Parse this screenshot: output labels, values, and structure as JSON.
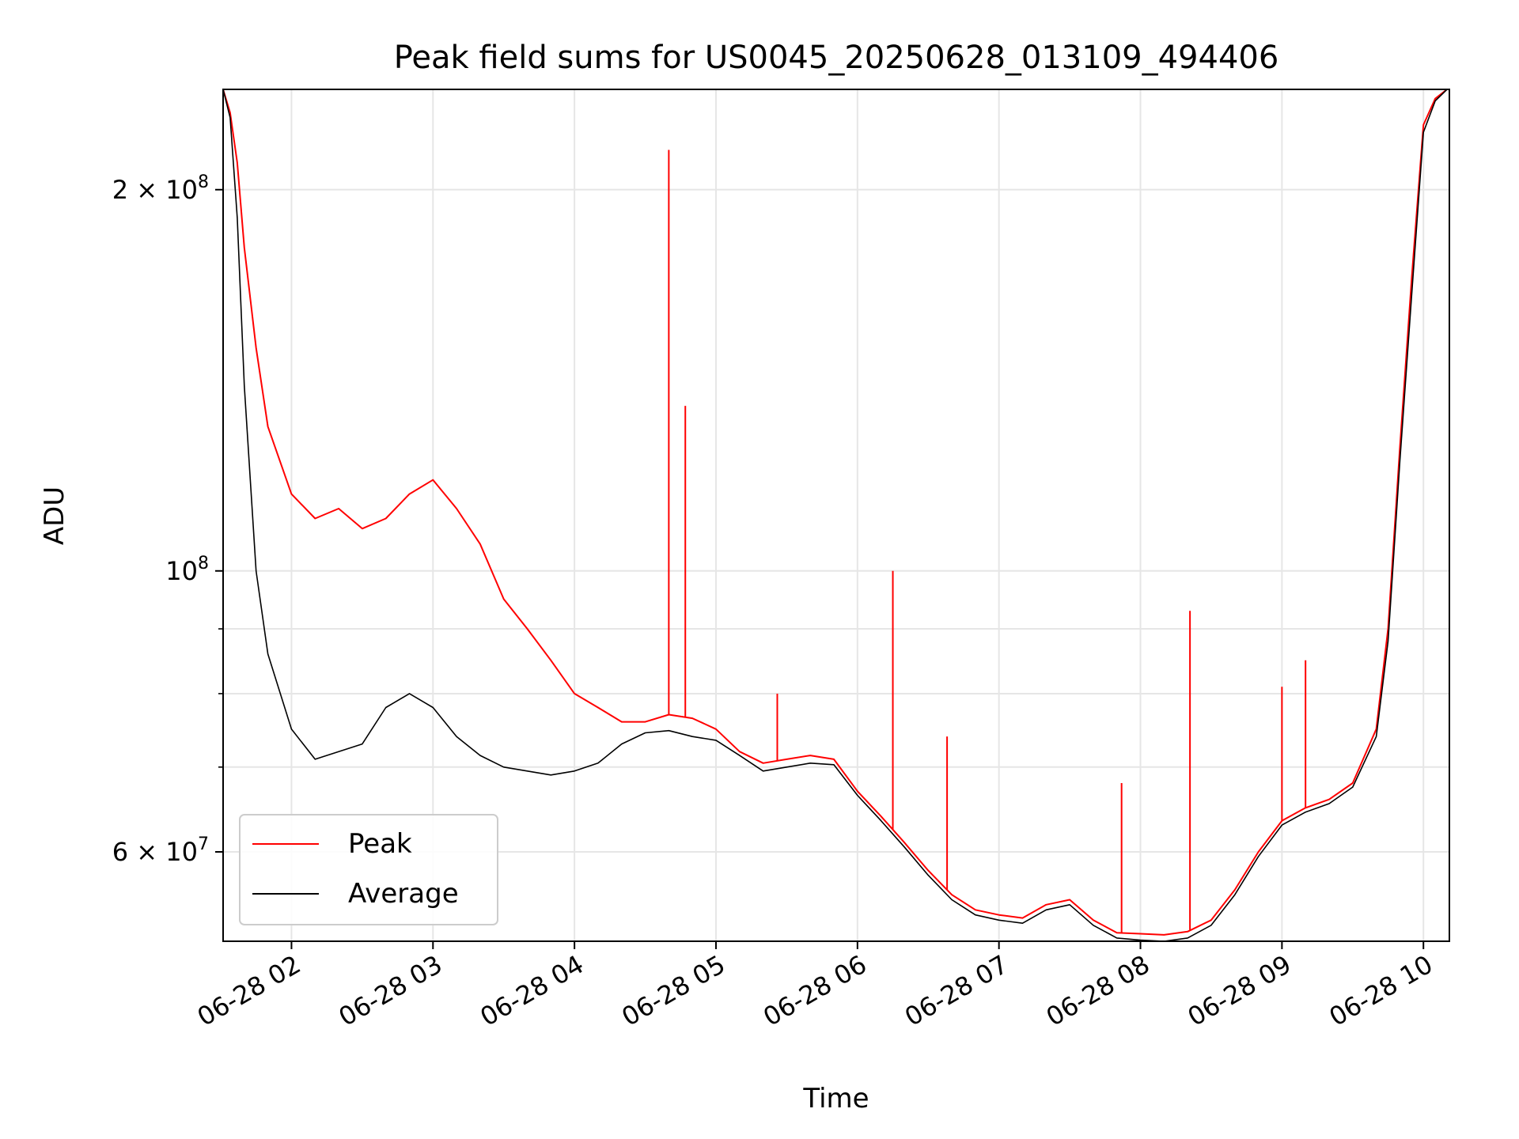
{
  "chart_data": {
    "type": "line",
    "title": "Peak field sums for US0045_20250628_013109_494406",
    "xlabel": "Time",
    "ylabel": "ADU",
    "yscale": "log",
    "grid": true,
    "legend_position": "lower-left",
    "xlim": [
      "2025-06-28 01:31",
      "2025-06-28 10:11"
    ],
    "ylim": [
      51000000,
      240000000
    ],
    "x_ticks": [
      {
        "value": "2025-06-28 02:00",
        "label": "06-28 02"
      },
      {
        "value": "2025-06-28 03:00",
        "label": "06-28 03"
      },
      {
        "value": "2025-06-28 04:00",
        "label": "06-28 04"
      },
      {
        "value": "2025-06-28 05:00",
        "label": "06-28 05"
      },
      {
        "value": "2025-06-28 06:00",
        "label": "06-28 06"
      },
      {
        "value": "2025-06-28 07:00",
        "label": "06-28 07"
      },
      {
        "value": "2025-06-28 08:00",
        "label": "06-28 08"
      },
      {
        "value": "2025-06-28 09:00",
        "label": "06-28 09"
      },
      {
        "value": "2025-06-28 10:00",
        "label": "06-28 10"
      }
    ],
    "y_major_ticks": [
      {
        "value": 200000000,
        "mantissa": "2",
        "exp": "8"
      },
      {
        "value": 100000000,
        "mantissa": "",
        "exp": "8"
      },
      {
        "value": 60000000,
        "mantissa": "6",
        "exp": "7"
      }
    ],
    "y_minor_ticks": [
      70000000,
      80000000,
      90000000,
      300000000
    ],
    "series": [
      {
        "name": "Peak",
        "color": "#ff0000",
        "x": [
          "2025-06-28 01:31",
          "2025-06-28 01:34",
          "2025-06-28 01:37",
          "2025-06-28 01:40",
          "2025-06-28 01:45",
          "2025-06-28 01:50",
          "2025-06-28 02:00",
          "2025-06-28 02:10",
          "2025-06-28 02:20",
          "2025-06-28 02:30",
          "2025-06-28 02:40",
          "2025-06-28 02:50",
          "2025-06-28 03:00",
          "2025-06-28 03:10",
          "2025-06-28 03:20",
          "2025-06-28 03:30",
          "2025-06-28 03:40",
          "2025-06-28 03:50",
          "2025-06-28 04:00",
          "2025-06-28 04:10",
          "2025-06-28 04:20",
          "2025-06-28 04:30",
          "2025-06-28 04:40",
          "2025-06-28 04:50",
          "2025-06-28 05:00",
          "2025-06-28 05:10",
          "2025-06-28 05:20",
          "2025-06-28 05:30",
          "2025-06-28 05:40",
          "2025-06-28 05:50",
          "2025-06-28 06:00",
          "2025-06-28 06:10",
          "2025-06-28 06:20",
          "2025-06-28 06:30",
          "2025-06-28 06:40",
          "2025-06-28 06:50",
          "2025-06-28 07:00",
          "2025-06-28 07:10",
          "2025-06-28 07:20",
          "2025-06-28 07:30",
          "2025-06-28 07:40",
          "2025-06-28 07:50",
          "2025-06-28 08:00",
          "2025-06-28 08:10",
          "2025-06-28 08:20",
          "2025-06-28 08:30",
          "2025-06-28 08:40",
          "2025-06-28 08:50",
          "2025-06-28 09:00",
          "2025-06-28 09:10",
          "2025-06-28 09:20",
          "2025-06-28 09:30",
          "2025-06-28 09:40",
          "2025-06-28 09:45",
          "2025-06-28 09:50",
          "2025-06-28 09:55",
          "2025-06-28 10:00",
          "2025-06-28 10:05",
          "2025-06-28 10:10"
        ],
        "y": [
          240000000,
          230000000,
          210000000,
          180000000,
          150000000,
          130000000,
          115000000,
          110000000,
          112000000,
          108000000,
          110000000,
          115000000,
          118000000,
          112000000,
          105000000,
          95000000,
          90000000,
          85000000,
          80000000,
          78000000,
          76000000,
          76000000,
          77000000,
          76500000,
          75000000,
          72000000,
          70500000,
          71000000,
          71500000,
          71000000,
          67000000,
          64000000,
          61000000,
          58000000,
          55500000,
          54000000,
          53500000,
          53200000,
          54500000,
          55000000,
          53000000,
          51800000,
          51700000,
          51600000,
          51900000,
          53000000,
          56000000,
          60000000,
          63500000,
          65000000,
          66000000,
          68000000,
          75000000,
          90000000,
          125000000,
          170000000,
          225000000,
          236000000,
          240000000
        ]
      },
      {
        "name": "Average",
        "color": "#000000",
        "x": [
          "2025-06-28 01:31",
          "2025-06-28 01:34",
          "2025-06-28 01:37",
          "2025-06-28 01:40",
          "2025-06-28 01:45",
          "2025-06-28 01:50",
          "2025-06-28 02:00",
          "2025-06-28 02:10",
          "2025-06-28 02:20",
          "2025-06-28 02:30",
          "2025-06-28 02:40",
          "2025-06-28 02:50",
          "2025-06-28 03:00",
          "2025-06-28 03:10",
          "2025-06-28 03:20",
          "2025-06-28 03:30",
          "2025-06-28 03:40",
          "2025-06-28 03:50",
          "2025-06-28 04:00",
          "2025-06-28 04:10",
          "2025-06-28 04:20",
          "2025-06-28 04:30",
          "2025-06-28 04:40",
          "2025-06-28 04:50",
          "2025-06-28 05:00",
          "2025-06-28 05:10",
          "2025-06-28 05:20",
          "2025-06-28 05:30",
          "2025-06-28 05:40",
          "2025-06-28 05:50",
          "2025-06-28 06:00",
          "2025-06-28 06:10",
          "2025-06-28 06:20",
          "2025-06-28 06:30",
          "2025-06-28 06:40",
          "2025-06-28 06:50",
          "2025-06-28 07:00",
          "2025-06-28 07:10",
          "2025-06-28 07:20",
          "2025-06-28 07:30",
          "2025-06-28 07:40",
          "2025-06-28 07:50",
          "2025-06-28 08:00",
          "2025-06-28 08:10",
          "2025-06-28 08:20",
          "2025-06-28 08:30",
          "2025-06-28 08:40",
          "2025-06-28 08:50",
          "2025-06-28 09:00",
          "2025-06-28 09:10",
          "2025-06-28 09:20",
          "2025-06-28 09:30",
          "2025-06-28 09:40",
          "2025-06-28 09:45",
          "2025-06-28 09:50",
          "2025-06-28 09:55",
          "2025-06-28 10:00",
          "2025-06-28 10:05",
          "2025-06-28 10:10"
        ],
        "y": [
          240000000,
          228000000,
          190000000,
          140000000,
          100000000,
          86000000,
          75000000,
          71000000,
          72000000,
          73000000,
          78000000,
          80000000,
          78000000,
          74000000,
          71500000,
          70000000,
          69500000,
          69000000,
          69500000,
          70500000,
          73000000,
          74500000,
          74800000,
          74000000,
          73500000,
          71500000,
          69500000,
          70000000,
          70500000,
          70300000,
          66500000,
          63500000,
          60500000,
          57500000,
          55000000,
          53500000,
          53000000,
          52700000,
          54000000,
          54500000,
          52500000,
          51300000,
          51100000,
          51000000,
          51300000,
          52500000,
          55500000,
          59500000,
          63000000,
          64500000,
          65500000,
          67500000,
          74000000,
          88000000,
          122000000,
          165000000,
          222000000,
          235000000,
          240000000
        ]
      }
    ],
    "peak_spikes": [
      {
        "x": "2025-06-28 04:40",
        "y": 215000000
      },
      {
        "x": "2025-06-28 04:47",
        "y": 135000000
      },
      {
        "x": "2025-06-28 05:26",
        "y": 80000000
      },
      {
        "x": "2025-06-28 06:15",
        "y": 100000000
      },
      {
        "x": "2025-06-28 06:38",
        "y": 74000000
      },
      {
        "x": "2025-06-28 07:52",
        "y": 68000000
      },
      {
        "x": "2025-06-28 08:21",
        "y": 93000000
      },
      {
        "x": "2025-06-28 09:00",
        "y": 81000000
      },
      {
        "x": "2025-06-28 09:10",
        "y": 85000000
      }
    ],
    "legend": [
      {
        "label": "Peak",
        "color": "#ff0000"
      },
      {
        "label": "Average",
        "color": "#000000"
      }
    ]
  }
}
